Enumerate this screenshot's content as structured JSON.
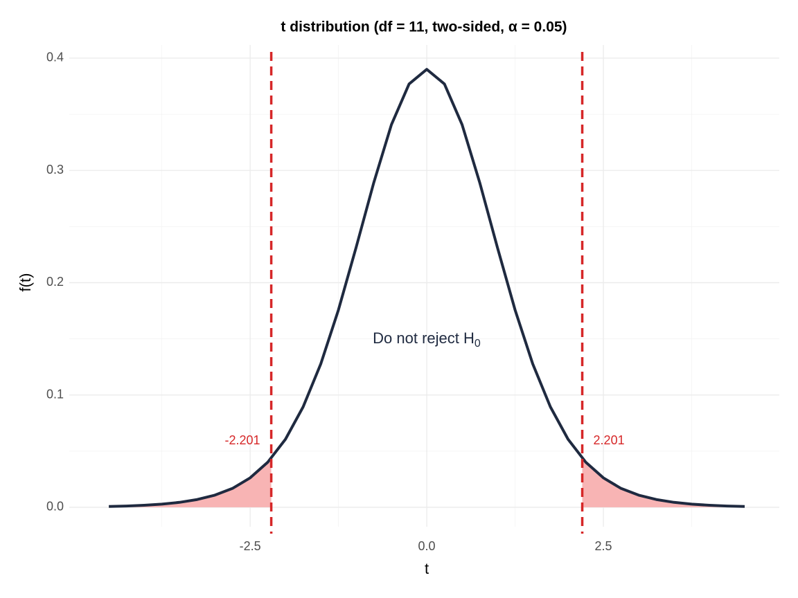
{
  "chart_data": {
    "type": "line",
    "title": "t distribution (df = 11, two-sided, α = 0.05)",
    "x_label": "t",
    "y_label": "f(t)",
    "x": [
      -4.5,
      -4.25,
      -4,
      -3.75,
      -3.5,
      -3.25,
      -3,
      -2.75,
      -2.5,
      -2.25,
      -2,
      -1.75,
      -1.5,
      -1.25,
      -1,
      -0.75,
      -0.5,
      -0.25,
      0,
      0.25,
      0.5,
      0.75,
      1,
      1.25,
      1.5,
      1.75,
      2,
      2.25,
      2.5,
      2.75,
      3,
      3.25,
      3.5,
      3.75,
      4,
      4.25,
      4.5
    ],
    "series": [
      {
        "color": "#1f2a40",
        "values": [
          0.0007,
          0.0011,
          0.0018,
          0.0028,
          0.0044,
          0.0069,
          0.0108,
          0.0168,
          0.0262,
          0.0402,
          0.0606,
          0.0894,
          0.1277,
          0.1758,
          0.2314,
          0.2891,
          0.3408,
          0.377,
          0.39,
          0.377,
          0.3408,
          0.2891,
          0.2314,
          0.1758,
          0.1277,
          0.0894,
          0.0606,
          0.0402,
          0.0262,
          0.0168,
          0.0108,
          0.0069,
          0.0044,
          0.0028,
          0.0018,
          0.0011,
          0.0007
        ]
      }
    ],
    "areas": [
      {
        "color": "#f8b4b4",
        "x": [
          -4.5,
          -4.25,
          -4,
          -3.75,
          -3.5,
          -3.25,
          -3,
          -2.75,
          -2.5,
          -2.25,
          -2.201
        ],
        "values": [
          0.0007,
          0.0011,
          0.0018,
          0.0028,
          0.0044,
          0.0069,
          0.0108,
          0.0168,
          0.0262,
          0.0402,
          0.0437
        ]
      },
      {
        "color": "#f8b4b4",
        "x": [
          2.201,
          2.25,
          2.5,
          2.75,
          3,
          3.25,
          3.5,
          3.75,
          4,
          4.25,
          4.5
        ],
        "values": [
          0.0437,
          0.0402,
          0.0262,
          0.0168,
          0.0108,
          0.0069,
          0.0044,
          0.0028,
          0.0018,
          0.0011,
          0.0007
        ]
      }
    ],
    "critical_values": [
      -2.201,
      2.201
    ],
    "critical_color": "#d62728",
    "annotation": {
      "text": "Do not reject H",
      "subscript": "0"
    },
    "xlim": [
      -5.06,
      4.99
    ],
    "ylim": [
      -0.0173,
      0.4117
    ],
    "xticks": [
      -2.5,
      {
        "value": 0,
        "label": "0.0"
      },
      2.5
    ],
    "yticks": [
      {
        "value": 0,
        "label": "0.0"
      },
      0.1,
      0.2,
      0.3,
      0.4
    ],
    "x_minor_ticks": [
      -3.75,
      -1.25,
      1.25,
      3.75
    ],
    "y_minor_ticks": [
      0.05,
      0.15,
      0.25,
      0.35
    ],
    "grid": true
  }
}
